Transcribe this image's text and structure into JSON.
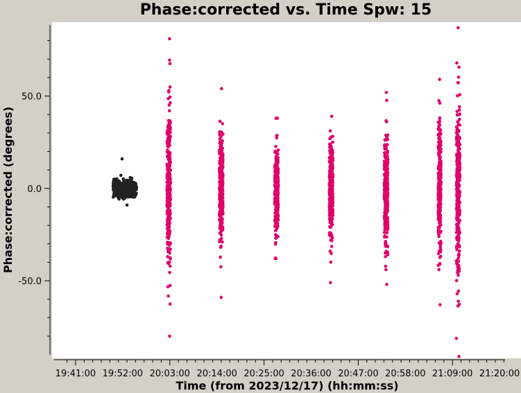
{
  "chart_data": {
    "type": "scatter",
    "title": "Phase:corrected vs. Time Spw: 15",
    "xlabel": "Time (from 2023/12/17) (hh:mm:ss)",
    "ylabel": "Phase:corrected (degrees)",
    "x_ticks": [
      "19:41:00",
      "19:52:00",
      "20:03:00",
      "20:14:00",
      "20:25:00",
      "20:36:00",
      "20:47:00",
      "20:58:00",
      "21:09:00",
      "21:20:00"
    ],
    "y_ticks": [
      {
        "value": 50.0,
        "label": "50.0"
      },
      {
        "value": 0.0,
        "label": "0.0"
      },
      {
        "value": -50.0,
        "label": "-50.0"
      }
    ],
    "xlim": [
      "19:35:30",
      "21:25:00"
    ],
    "ylim": [
      -92,
      90
    ],
    "grid": false,
    "colors": {
      "series_dark": "#222222",
      "series_magenta": "#e0006a"
    },
    "series": [
      {
        "color_key": "series_dark",
        "clusters": [
          {
            "time": "19:52:30",
            "width_sec": 330,
            "center": 0,
            "spread": 2.2,
            "min": -9,
            "max": 16,
            "n": 420
          }
        ]
      },
      {
        "color_key": "series_magenta",
        "clusters": [
          {
            "time": "20:02:45",
            "width_sec": 50,
            "center": 0,
            "spread": 22,
            "min": -80,
            "max": 81,
            "n": 320
          },
          {
            "time": "20:15:00",
            "width_sec": 50,
            "center": 0,
            "spread": 15,
            "min": -59,
            "max": 54,
            "n": 300
          },
          {
            "time": "20:27:55",
            "width_sec": 50,
            "center": 0,
            "spread": 12,
            "min": -38,
            "max": 38,
            "n": 300
          },
          {
            "time": "20:40:40",
            "width_sec": 50,
            "center": 0,
            "spread": 12,
            "min": -51,
            "max": 39,
            "n": 300
          },
          {
            "time": "20:53:30",
            "width_sec": 50,
            "center": 0,
            "spread": 14,
            "min": -52,
            "max": 52,
            "n": 300
          },
          {
            "time": "21:06:00",
            "width_sec": 40,
            "center": 0,
            "spread": 17,
            "min": -63,
            "max": 59,
            "n": 280
          },
          {
            "time": "21:10:20",
            "width_sec": 50,
            "center": 0,
            "spread": 24,
            "min": -91,
            "max": 87,
            "n": 330
          }
        ]
      }
    ]
  }
}
